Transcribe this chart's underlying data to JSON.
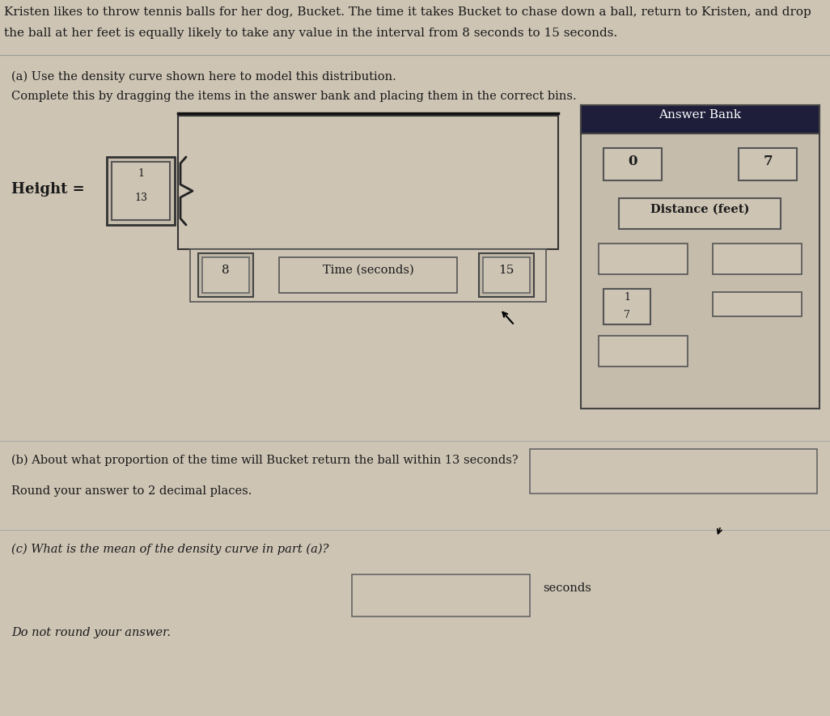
{
  "bg_color": "#cdc4b4",
  "title_text1": "Kristen likes to throw tennis balls for her dog, Bucket. The time it takes Bucket to chase down a ball, return to Kristen, and drop",
  "title_text2": "the ball at her feet is equally likely to take any value in the interval from 8 seconds to 15 seconds.",
  "part_a_line1": "(a) Use the density curve shown here to model this distribution.",
  "part_a_line2": "Complete this by dragging the items in the answer bank and placing them in the correct bins.",
  "answer_bank_title": "Answer Bank",
  "answer_bank_bg": "#1e1e3a",
  "height_label": "Height =",
  "height_frac_num": "1",
  "height_frac_den": "13",
  "time_label": "Time (seconds)",
  "x_left_box": "8",
  "x_right_box": "15",
  "frac_17_num": "1",
  "frac_17_den": "7",
  "part_b_text1": "(b) About what proportion of the time will Bucket return the ball within 13 seconds?",
  "part_b_text2": "Round your answer to 2 decimal places.",
  "part_c_text1": "(c) What is the mean of the density curve in part (a)?",
  "part_c_text2": "Do not round your answer.",
  "seconds_label": "seconds",
  "box_bg": "#cdc4b4",
  "box_border_dark": "#444444",
  "box_border_light": "#888888",
  "text_color": "#1a1a1a",
  "line_color": "#555555"
}
